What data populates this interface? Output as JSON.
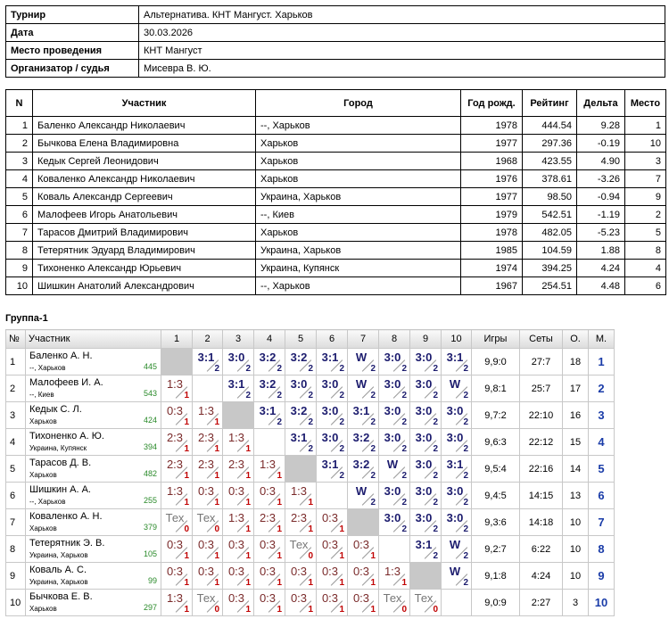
{
  "info": [
    {
      "label": "Турнир",
      "value": "Альтернатива. КНТ Мангуст. Харьков"
    },
    {
      "label": "Дата",
      "value": "30.03.2026"
    },
    {
      "label": "Место проведения",
      "value": "КНТ Мангуст"
    },
    {
      "label": "Организатор / судья",
      "value": "Мисевра В. Ю."
    }
  ],
  "participants": {
    "headers": [
      "N",
      "Участник",
      "Город",
      "Год рожд.",
      "Рейтинг",
      "Дельта",
      "Место"
    ],
    "rows": [
      [
        "1",
        "Баленко Александр Николаевич",
        "--, Харьков",
        "1978",
        "444.54",
        "9.28",
        "1"
      ],
      [
        "2",
        "Бычкова Елена Владимировна",
        "Харьков",
        "1977",
        "297.36",
        "-0.19",
        "10"
      ],
      [
        "3",
        "Кедык Сергей Леонидович",
        "Харьков",
        "1968",
        "423.55",
        "4.90",
        "3"
      ],
      [
        "4",
        "Коваленко Александр Николаевич",
        "Харьков",
        "1976",
        "378.61",
        "-3.26",
        "7"
      ],
      [
        "5",
        "Коваль Александр Сергеевич",
        "Украина, Харьков",
        "1977",
        "98.50",
        "-0.94",
        "9"
      ],
      [
        "6",
        "Малофеев Игорь Анатольевич",
        "--, Киев",
        "1979",
        "542.51",
        "-1.19",
        "2"
      ],
      [
        "7",
        "Тарасов Дмитрий Владимирович",
        "Харьков",
        "1978",
        "482.05",
        "-5.23",
        "5"
      ],
      [
        "8",
        "Тетерятник Эдуард Владимирович",
        "Украина, Харьков",
        "1985",
        "104.59",
        "1.88",
        "8"
      ],
      [
        "9",
        "Тихоненко Александр Юрьевич",
        "Украина, Купянск",
        "1974",
        "394.25",
        "4.24",
        "4"
      ],
      [
        "10",
        "Шишкин Анатолий Александрович",
        "--, Харьков",
        "1967",
        "254.51",
        "4.48",
        "6"
      ]
    ]
  },
  "group": {
    "title": "Группа-1",
    "headers": [
      "№",
      "Участник",
      "1",
      "2",
      "3",
      "4",
      "5",
      "6",
      "7",
      "8",
      "9",
      "10",
      "Игры",
      "Сеты",
      "О.",
      "М."
    ],
    "rows": [
      {
        "n": "1",
        "name": "Баленко А. Н.",
        "city": "--, Харьков",
        "rating": "445",
        "results": [
          null,
          {
            "score": "3:1",
            "points": "2"
          },
          {
            "score": "3:0",
            "points": "2"
          },
          {
            "score": "3:2",
            "points": "2"
          },
          {
            "score": "3:2",
            "points": "2"
          },
          {
            "score": "3:1",
            "points": "2"
          },
          {
            "score": "W",
            "points": "2"
          },
          {
            "score": "3:0",
            "points": "2"
          },
          {
            "score": "3:0",
            "points": "2"
          },
          {
            "score": "3:1",
            "points": "2"
          }
        ],
        "games": "9,9:0",
        "sets": "27:7",
        "points": "18",
        "place": "1"
      },
      {
        "n": "2",
        "name": "Малофеев И. А.",
        "city": "--, Киев",
        "rating": "543",
        "results": [
          {
            "score": "1:3",
            "points": "1"
          },
          null,
          {
            "score": "3:1",
            "points": "2"
          },
          {
            "score": "3:2",
            "points": "2"
          },
          {
            "score": "3:0",
            "points": "2"
          },
          {
            "score": "3:0",
            "points": "2"
          },
          {
            "score": "W",
            "points": "2"
          },
          {
            "score": "3:0",
            "points": "2"
          },
          {
            "score": "3:0",
            "points": "2"
          },
          {
            "score": "W",
            "points": "2"
          }
        ],
        "games": "9,8:1",
        "sets": "25:7",
        "points": "17",
        "place": "2"
      },
      {
        "n": "3",
        "name": "Кедык С. Л.",
        "city": "Харьков",
        "rating": "424",
        "results": [
          {
            "score": "0:3",
            "points": "1"
          },
          {
            "score": "1:3",
            "points": "1"
          },
          null,
          {
            "score": "3:1",
            "points": "2"
          },
          {
            "score": "3:2",
            "points": "2"
          },
          {
            "score": "3:0",
            "points": "2"
          },
          {
            "score": "3:1",
            "points": "2"
          },
          {
            "score": "3:0",
            "points": "2"
          },
          {
            "score": "3:0",
            "points": "2"
          },
          {
            "score": "3:0",
            "points": "2"
          }
        ],
        "games": "9,7:2",
        "sets": "22:10",
        "points": "16",
        "place": "3"
      },
      {
        "n": "4",
        "name": "Тихоненко А. Ю.",
        "city": "Украина, Купянск",
        "rating": "394",
        "results": [
          {
            "score": "2:3",
            "points": "1"
          },
          {
            "score": "2:3",
            "points": "1"
          },
          {
            "score": "1:3",
            "points": "1"
          },
          null,
          {
            "score": "3:1",
            "points": "2"
          },
          {
            "score": "3:0",
            "points": "2"
          },
          {
            "score": "3:2",
            "points": "2"
          },
          {
            "score": "3:0",
            "points": "2"
          },
          {
            "score": "3:0",
            "points": "2"
          },
          {
            "score": "3:0",
            "points": "2"
          }
        ],
        "games": "9,6:3",
        "sets": "22:12",
        "points": "15",
        "place": "4"
      },
      {
        "n": "5",
        "name": "Тарасов Д. В.",
        "city": "Харьков",
        "rating": "482",
        "results": [
          {
            "score": "2:3",
            "points": "1"
          },
          {
            "score": "2:3",
            "points": "1"
          },
          {
            "score": "2:3",
            "points": "1"
          },
          {
            "score": "1:3",
            "points": "1"
          },
          null,
          {
            "score": "3:1",
            "points": "2"
          },
          {
            "score": "3:2",
            "points": "2"
          },
          {
            "score": "W",
            "points": "2"
          },
          {
            "score": "3:0",
            "points": "2"
          },
          {
            "score": "3:1",
            "points": "2"
          }
        ],
        "games": "9,5:4",
        "sets": "22:16",
        "points": "14",
        "place": "5"
      },
      {
        "n": "6",
        "name": "Шишкин А. А.",
        "city": "--, Харьков",
        "rating": "255",
        "results": [
          {
            "score": "1:3",
            "points": "1"
          },
          {
            "score": "0:3",
            "points": "1"
          },
          {
            "score": "0:3",
            "points": "1"
          },
          {
            "score": "0:3",
            "points": "1"
          },
          {
            "score": "1:3",
            "points": "1"
          },
          null,
          {
            "score": "W",
            "points": "2"
          },
          {
            "score": "3:0",
            "points": "2"
          },
          {
            "score": "3:0",
            "points": "2"
          },
          {
            "score": "3:0",
            "points": "2"
          }
        ],
        "games": "9,4:5",
        "sets": "14:15",
        "points": "13",
        "place": "6"
      },
      {
        "n": "7",
        "name": "Коваленко А. Н.",
        "city": "Харьков",
        "rating": "379",
        "results": [
          {
            "score": "Тех",
            "points": "0"
          },
          {
            "score": "Тех",
            "points": "0"
          },
          {
            "score": "1:3",
            "points": "1"
          },
          {
            "score": "2:3",
            "points": "1"
          },
          {
            "score": "2:3",
            "points": "1"
          },
          {
            "score": "0:3",
            "points": "1"
          },
          null,
          {
            "score": "3:0",
            "points": "2"
          },
          {
            "score": "3:0",
            "points": "2"
          },
          {
            "score": "3:0",
            "points": "2"
          }
        ],
        "games": "9,3:6",
        "sets": "14:18",
        "points": "10",
        "place": "7"
      },
      {
        "n": "8",
        "name": "Тетерятник Э. В.",
        "city": "Украина, Харьков",
        "rating": "105",
        "results": [
          {
            "score": "0:3",
            "points": "1"
          },
          {
            "score": "0:3",
            "points": "1"
          },
          {
            "score": "0:3",
            "points": "1"
          },
          {
            "score": "0:3",
            "points": "1"
          },
          {
            "score": "Тех",
            "points": "0"
          },
          {
            "score": "0:3",
            "points": "1"
          },
          {
            "score": "0:3",
            "points": "1"
          },
          null,
          {
            "score": "3:1",
            "points": "2"
          },
          {
            "score": "W",
            "points": "2"
          }
        ],
        "games": "9,2:7",
        "sets": "6:22",
        "points": "10",
        "place": "8"
      },
      {
        "n": "9",
        "name": "Коваль А. С.",
        "city": "Украина, Харьков",
        "rating": "99",
        "results": [
          {
            "score": "0:3",
            "points": "1"
          },
          {
            "score": "0:3",
            "points": "1"
          },
          {
            "score": "0:3",
            "points": "1"
          },
          {
            "score": "0:3",
            "points": "1"
          },
          {
            "score": "0:3",
            "points": "1"
          },
          {
            "score": "0:3",
            "points": "1"
          },
          {
            "score": "0:3",
            "points": "1"
          },
          {
            "score": "1:3",
            "points": "1"
          },
          null,
          {
            "score": "W",
            "points": "2"
          }
        ],
        "games": "9,1:8",
        "sets": "4:24",
        "points": "10",
        "place": "9"
      },
      {
        "n": "10",
        "name": "Бычкова Е. В.",
        "city": "Харьков",
        "rating": "297",
        "results": [
          {
            "score": "1:3",
            "points": "1"
          },
          {
            "score": "Тех",
            "points": "0"
          },
          {
            "score": "0:3",
            "points": "1"
          },
          {
            "score": "0:3",
            "points": "1"
          },
          {
            "score": "0:3",
            "points": "1"
          },
          {
            "score": "0:3",
            "points": "1"
          },
          {
            "score": "0:3",
            "points": "1"
          },
          {
            "score": "Тех",
            "points": "0"
          },
          {
            "score": "Тех",
            "points": "0"
          },
          null
        ],
        "games": "9,0:9",
        "sets": "2:27",
        "points": "3",
        "place": "10"
      }
    ]
  }
}
